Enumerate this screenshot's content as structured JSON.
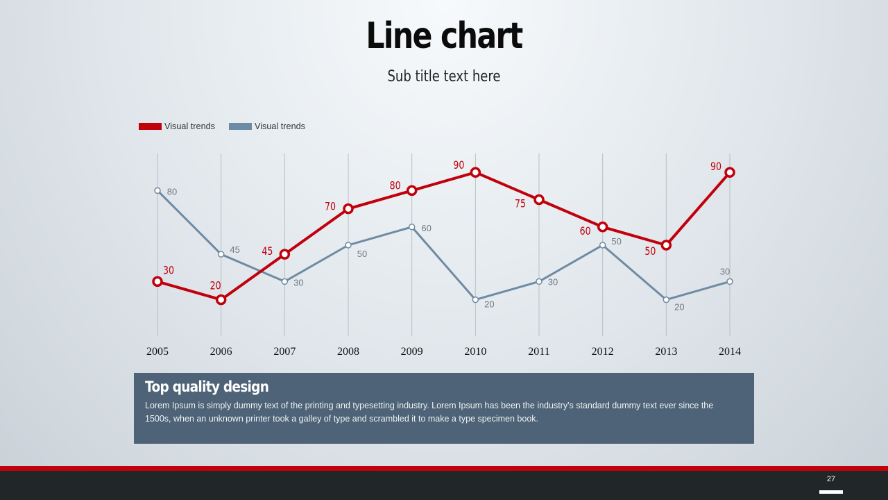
{
  "title": "Line chart",
  "subtitle": "Sub title text here",
  "colors": {
    "red_series": "#c0000b",
    "blue_series": "#6f8aa3",
    "info_box": "#4e6377",
    "footer": "#212629"
  },
  "chart_data": {
    "type": "line",
    "categories": [
      "2005",
      "2006",
      "2007",
      "2008",
      "2009",
      "2010",
      "2011",
      "2012",
      "2013",
      "2014"
    ],
    "series": [
      {
        "name": "Visual trends",
        "color": "#c0000b",
        "values": [
          30,
          20,
          45,
          70,
          80,
          90,
          75,
          60,
          50,
          90
        ]
      },
      {
        "name": "Visual trends",
        "color": "#6f8aa3",
        "values": [
          80,
          45,
          30,
          50,
          60,
          20,
          30,
          50,
          20,
          30
        ]
      }
    ],
    "ylim": [
      0,
      100
    ],
    "grid": "vertical",
    "legend": "top-left",
    "xlabel": "",
    "ylabel": ""
  },
  "info": {
    "heading": "Top quality design",
    "body": "Lorem Ipsum is simply dummy text of the printing and typesetting industry. Lorem Ipsum has been the industry's standard dummy text ever since the 1500s, when an unknown printer took a galley of type and scrambled it to make a type specimen book."
  },
  "footer": {
    "page_number": "27"
  }
}
